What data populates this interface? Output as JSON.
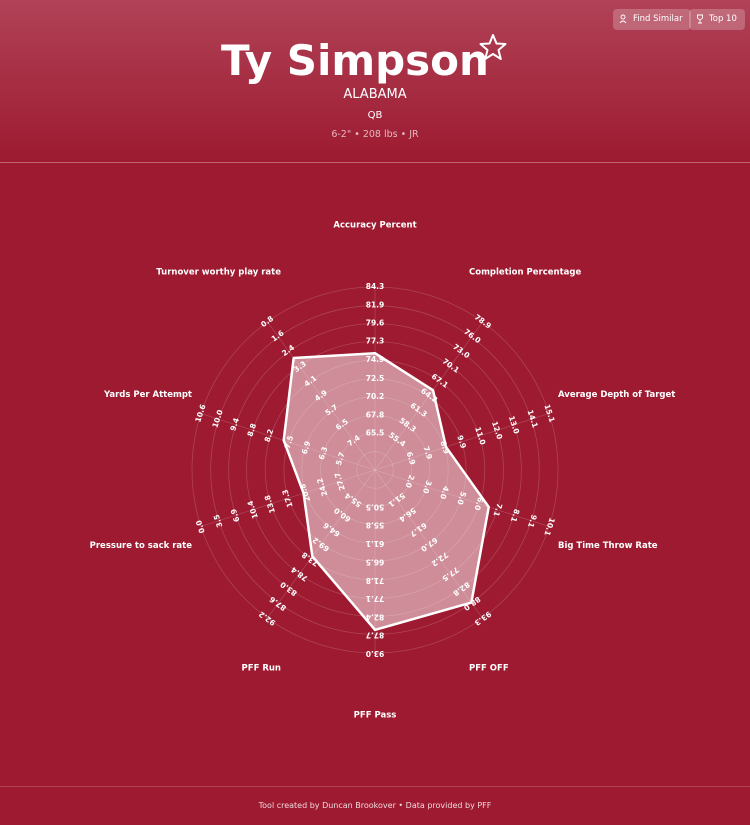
{
  "header": {
    "buttons": [
      "Find Similar",
      "Top 10"
    ],
    "name": "Ty Simpson",
    "school": "ALABAMA",
    "position": "QB",
    "details": "6-2\" • 208 lbs • JR"
  },
  "chart_data": {
    "type": "radar",
    "color": "#ffffff",
    "categories": [
      "Accuracy Percent",
      "Completion Percentage",
      "Average Depth of Target",
      "Big Time Throw Rate",
      "PFF OFF",
      "PFF Pass",
      "PFF Run",
      "Pressure to sack rate",
      "Yards Per Attempt",
      "Turnover worthy play rate"
    ],
    "axes": [
      {
        "lim": [
          60.8,
          84.3
        ],
        "ticks": [
          65.5,
          67.8,
          70.2,
          72.5,
          74.9,
          77.3,
          79.6,
          81.9,
          84.3
        ]
      },
      {
        "lim": [
          49.4,
          78.9
        ],
        "ticks": [
          55.4,
          58.3,
          61.3,
          64.2,
          67.1,
          70.1,
          {
            "value": 73,
            "label": "73.0"
          },
          {
            "value": 76,
            "label": "76.0"
          },
          78.9
        ]
      },
      {
        "lim": [
          4.8,
          15.1
        ],
        "ticks": [
          6.9,
          7.9,
          8.9,
          9.9,
          {
            "value": 11,
            "label": "11.0"
          },
          {
            "value": 12,
            "label": "12.0"
          },
          {
            "value": 13,
            "label": "13.0"
          },
          14.1,
          15.1
        ]
      },
      {
        "lim": [
          0,
          10.1
        ],
        "ticks": [
          {
            "value": 2,
            "label": "2.0"
          },
          {
            "value": 3,
            "label": "3.0"
          },
          {
            "value": 4,
            "label": "4.0"
          },
          {
            "value": 5,
            "label": "5.0"
          },
          {
            "value": 6,
            "label": "6.0"
          },
          7.1,
          8.1,
          9.1,
          10.1
        ]
      },
      {
        "lim": [
          40.6,
          93.3
        ],
        "ticks": [
          51.1,
          56.4,
          61.7,
          {
            "value": 67,
            "label": "67.0"
          },
          72.2,
          77.5,
          82.8,
          {
            "value": 88,
            "label": "88.0"
          },
          93.3
        ]
      },
      {
        "lim": [
          40.0,
          93.0
        ],
        "ticks": [
          50.5,
          55.8,
          61.1,
          66.5,
          71.8,
          77.1,
          82.4,
          87.7,
          {
            "value": 93,
            "label": "93.0"
          }
        ]
      },
      {
        "lim": [
          46.2,
          92.2
        ],
        "ticks": [
          55.4,
          {
            "value": 60,
            "label": "60.0"
          },
          64.6,
          69.2,
          73.8,
          78.4,
          {
            "value": 83,
            "label": "83.0"
          },
          87.6,
          92.2
        ]
      },
      {
        "lim": [
          34.6,
          0
        ],
        "ticks": [
          27.7,
          24.2,
          20.8,
          17.3,
          13.8,
          10.4,
          6.9,
          3.5,
          {
            "value": 0,
            "label": "0.0"
          }
        ]
      },
      {
        "lim": [
          4.5,
          10.6
        ],
        "ticks": [
          5.7,
          6.3,
          6.9,
          7.5,
          8.2,
          8.8,
          9.4,
          {
            "value": 10,
            "label": "10.0"
          },
          10.6
        ]
      },
      {
        "lim": [
          9.0,
          0.8
        ],
        "ticks": [
          7.4,
          6.5,
          5.7,
          4.9,
          4.1,
          3.3,
          2.4,
          1.6,
          0.8
        ]
      }
    ],
    "values": [
      75.8,
      65.3,
      9.0,
      6.6,
      87.8,
      86.3,
      73.0,
      20.4,
      7.7,
      2.8
    ]
  },
  "footer": "Tool created by Duncan Brookover • Data provided by PFF"
}
